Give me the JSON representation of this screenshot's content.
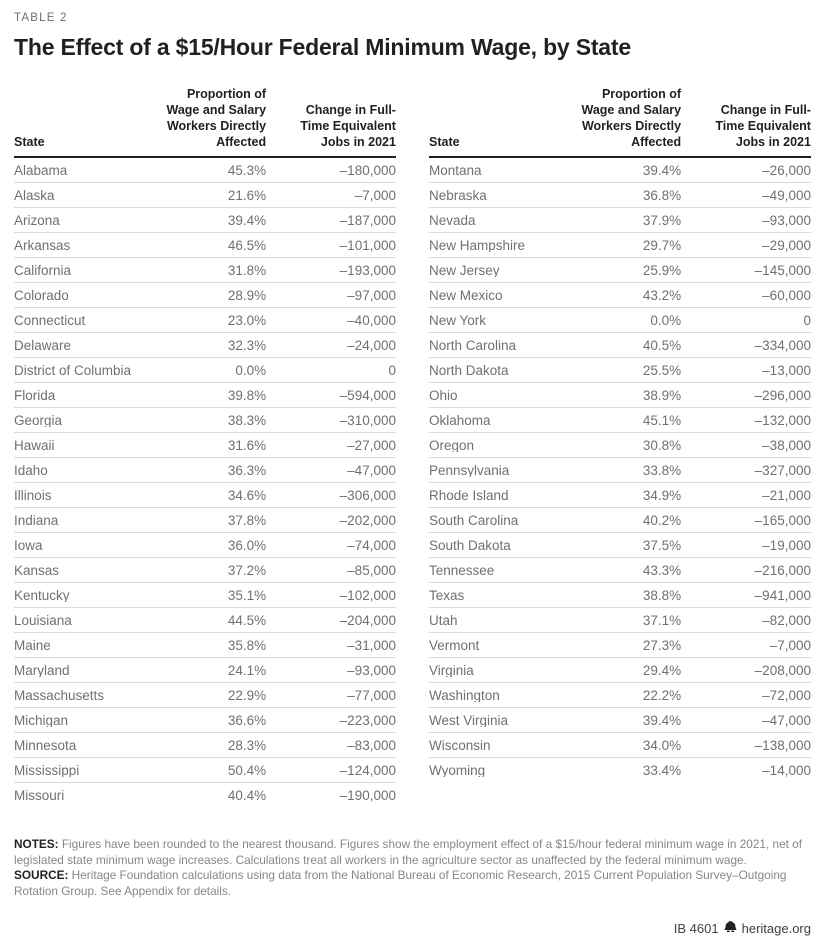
{
  "page": {
    "table_label": "TABLE 2",
    "title": "The Effect of a $15/Hour Federal Minimum Wage, by State"
  },
  "header": {
    "state": "State",
    "proportion": "Proportion of\nWage and Salary\nWorkers Directly\nAffected",
    "change": "Change in Full-\nTime Equivalent\nJobs in 2021"
  },
  "notes": {
    "notes_label": "NOTES:",
    "notes_text": " Figures have been rounded to the nearest thousand. Figures show the employment effect of a $15/hour federal minimum wage in 2021, net of legislated state minimum wage increases. Calculations treat all workers in the agriculture sector as unaffected by the federal minimum wage.",
    "source_label": "SOURCE:",
    "source_text": " Heritage Foundation calculations using data from the National Bureau of Economic Research, 2015 Current Population Survey–Outgoing Rotation Group. See Appendix for details."
  },
  "footer": {
    "doc_id": "IB 4601",
    "site": "heritage.org",
    "icon": "heritage-bell",
    "icon_color": "#231f20"
  },
  "chart_data": {
    "type": "table",
    "title": "The Effect of a $15/Hour Federal Minimum Wage, by State",
    "columns": [
      "State",
      "Proportion of Wage and Salary Workers Directly Affected",
      "Change in Full-Time Equivalent Jobs in 2021"
    ],
    "left_rows": [
      [
        "Alabama",
        "45.3%",
        "–180,000"
      ],
      [
        "Alaska",
        "21.6%",
        "–7,000"
      ],
      [
        "Arizona",
        "39.4%",
        "–187,000"
      ],
      [
        "Arkansas",
        "46.5%",
        "–101,000"
      ],
      [
        "California",
        "31.8%",
        "–193,000"
      ],
      [
        "Colorado",
        "28.9%",
        "–97,000"
      ],
      [
        "Connecticut",
        "23.0%",
        "–40,000"
      ],
      [
        "Delaware",
        "32.3%",
        "–24,000"
      ],
      [
        "District of Columbia",
        "0.0%",
        "0"
      ],
      [
        "Florida",
        "39.8%",
        "–594,000"
      ],
      [
        "Georgia",
        "38.3%",
        "–310,000"
      ],
      [
        "Hawaii",
        "31.6%",
        "–27,000"
      ],
      [
        "Idaho",
        "36.3%",
        "–47,000"
      ],
      [
        "Illinois",
        "34.6%",
        "–306,000"
      ],
      [
        "Indiana",
        "37.8%",
        "–202,000"
      ],
      [
        "Iowa",
        "36.0%",
        "–74,000"
      ],
      [
        "Kansas",
        "37.2%",
        "–85,000"
      ],
      [
        "Kentucky",
        "35.1%",
        "–102,000"
      ],
      [
        "Louisiana",
        "44.5%",
        "–204,000"
      ],
      [
        "Maine",
        "35.8%",
        "–31,000"
      ],
      [
        "Maryland",
        "24.1%",
        "–93,000"
      ],
      [
        "Massachusetts",
        "22.9%",
        "–77,000"
      ],
      [
        "Michigan",
        "36.6%",
        "–223,000"
      ],
      [
        "Minnesota",
        "28.3%",
        "–83,000"
      ],
      [
        "Mississippi",
        "50.4%",
        "–124,000"
      ],
      [
        "Missouri",
        "40.4%",
        "–190,000"
      ]
    ],
    "right_rows": [
      [
        "Montana",
        "39.4%",
        "–26,000"
      ],
      [
        "Nebraska",
        "36.8%",
        "–49,000"
      ],
      [
        "Nevada",
        "37.9%",
        "–93,000"
      ],
      [
        "New Hampshire",
        "29.7%",
        "–29,000"
      ],
      [
        "New Jersey",
        "25.9%",
        "–145,000"
      ],
      [
        "New Mexico",
        "43.2%",
        "–60,000"
      ],
      [
        "New York",
        "0.0%",
        "0"
      ],
      [
        "North Carolina",
        "40.5%",
        "–334,000"
      ],
      [
        "North Dakota",
        "25.5%",
        "–13,000"
      ],
      [
        "Ohio",
        "38.9%",
        "–296,000"
      ],
      [
        "Oklahoma",
        "45.1%",
        "–132,000"
      ],
      [
        "Oregon",
        "30.8%",
        "–38,000"
      ],
      [
        "Pennsylvania",
        "33.8%",
        "–327,000"
      ],
      [
        "Rhode Island",
        "34.9%",
        "–21,000"
      ],
      [
        "South Carolina",
        "40.2%",
        "–165,000"
      ],
      [
        "South Dakota",
        "37.5%",
        "–19,000"
      ],
      [
        "Tennessee",
        "43.3%",
        "–216,000"
      ],
      [
        "Texas",
        "38.8%",
        "–941,000"
      ],
      [
        "Utah",
        "37.1%",
        "–82,000"
      ],
      [
        "Vermont",
        "27.3%",
        "–7,000"
      ],
      [
        "Virginia",
        "29.4%",
        "–208,000"
      ],
      [
        "Washington",
        "22.2%",
        "–72,000"
      ],
      [
        "West Virginia",
        "39.4%",
        "–47,000"
      ],
      [
        "Wisconsin",
        "34.0%",
        "–138,000"
      ],
      [
        "Wyoming",
        "33.4%",
        "–14,000"
      ]
    ]
  }
}
